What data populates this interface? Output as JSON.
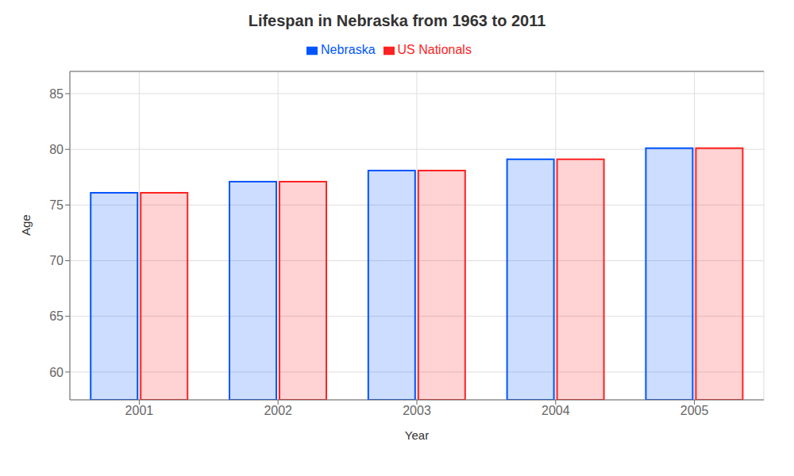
{
  "chart_data": {
    "type": "bar",
    "title": "Lifespan in Nebraska from 1963 to 2011",
    "xlabel": "Year",
    "ylabel": "Age",
    "categories": [
      "2001",
      "2002",
      "2003",
      "2004",
      "2005"
    ],
    "series": [
      {
        "name": "Nebraska",
        "color": "#0055ff",
        "values": [
          76.1,
          77.1,
          78.1,
          79.1,
          80.1
        ]
      },
      {
        "name": "US Nationals",
        "color": "#ff2222",
        "values": [
          76.1,
          77.1,
          78.1,
          79.1,
          80.1
        ]
      }
    ],
    "ylim": [
      57.5,
      87
    ],
    "yticks": [
      60,
      65,
      70,
      75,
      80,
      85
    ],
    "grid": true,
    "legend": "top"
  }
}
